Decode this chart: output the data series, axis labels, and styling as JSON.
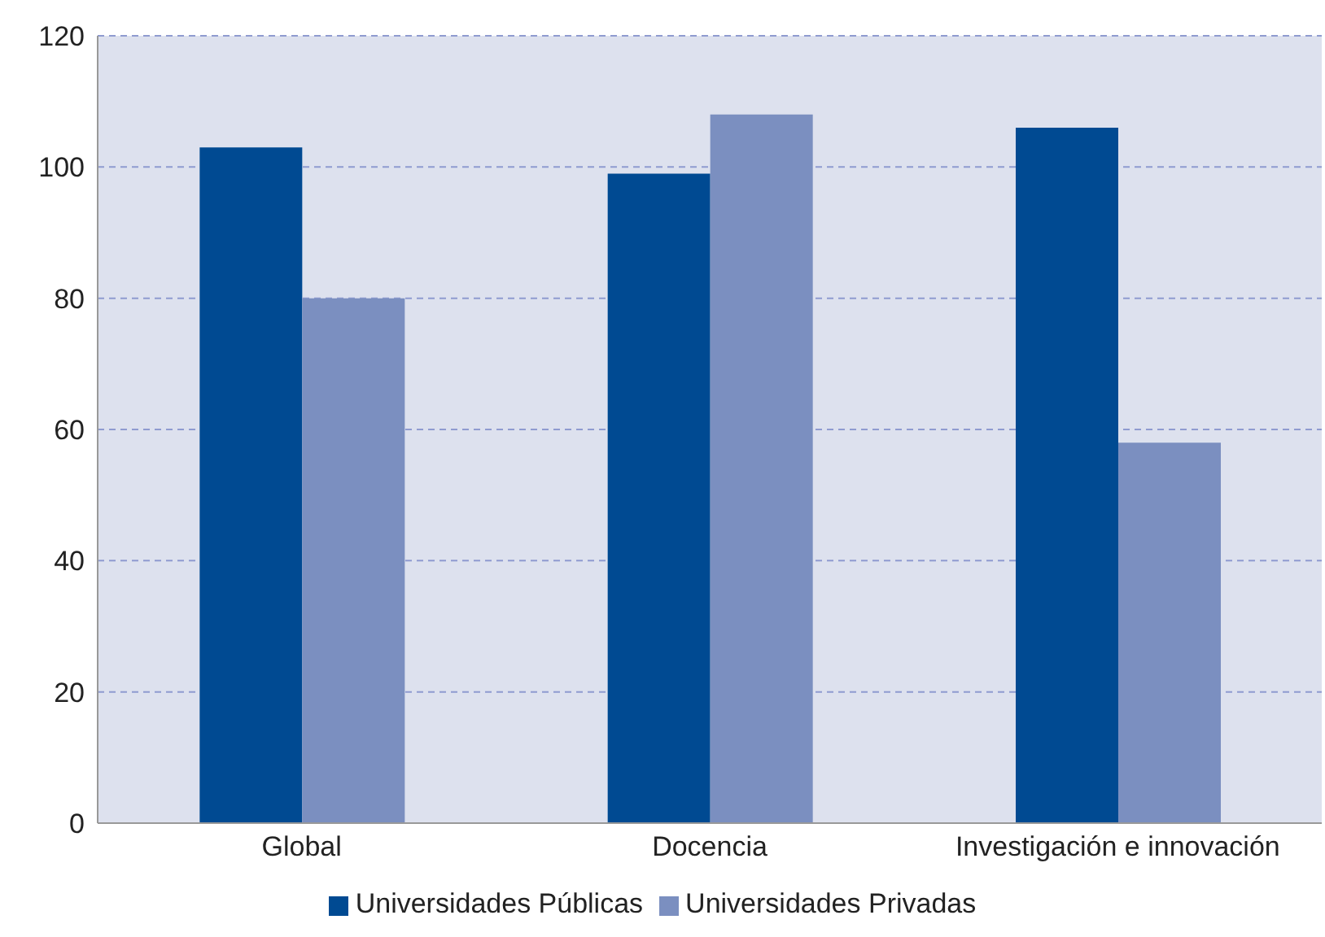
{
  "chart_data": {
    "type": "bar",
    "categories": [
      "Global",
      "Docencia",
      "Investigación e innovación"
    ],
    "series": [
      {
        "name": "Universidades Públicas",
        "color": "#004a92",
        "values": [
          103,
          99,
          106
        ]
      },
      {
        "name": "Universidades Privadas",
        "color": "#7b8fc0",
        "values": [
          80,
          108,
          58
        ]
      }
    ],
    "ylim": [
      0,
      120
    ],
    "yticks": [
      0,
      20,
      40,
      60,
      80,
      100,
      120
    ],
    "grid": "y",
    "legend": "bottom"
  }
}
